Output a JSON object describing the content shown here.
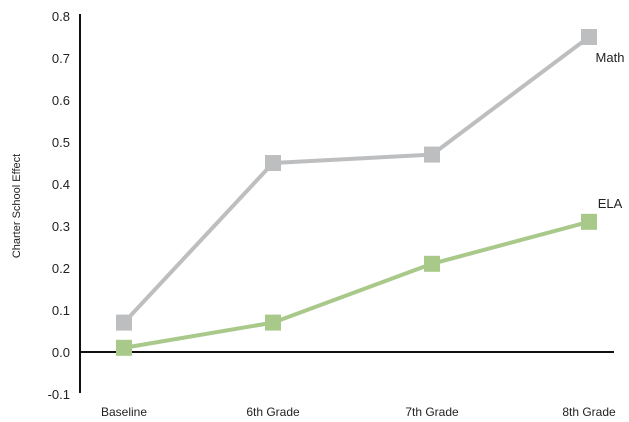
{
  "chart_data": {
    "type": "line",
    "title": "",
    "xlabel": "",
    "ylabel": "Charter School Effect",
    "ylim": [
      -0.1,
      0.8
    ],
    "yticks": [
      -0.1,
      0.0,
      0.1,
      0.2,
      0.3,
      0.4,
      0.5,
      0.6,
      0.7,
      0.8
    ],
    "ytick_labels": [
      "-0.1",
      "0.0",
      "0.1",
      "0.2",
      "0.3",
      "0.4",
      "0.5",
      "0.6",
      "0.7",
      "0.8"
    ],
    "categories": [
      "Baseline",
      "6th Grade",
      "7th Grade",
      "8th Grade"
    ],
    "grid": false,
    "legend": "inline labels at line ends",
    "series": [
      {
        "name": "Math",
        "values": [
          0.07,
          0.45,
          0.47,
          0.75
        ],
        "color": "#bdbec0"
      },
      {
        "name": "ELA",
        "values": [
          0.01,
          0.07,
          0.21,
          0.31
        ],
        "color": "#a8c98a"
      }
    ]
  }
}
